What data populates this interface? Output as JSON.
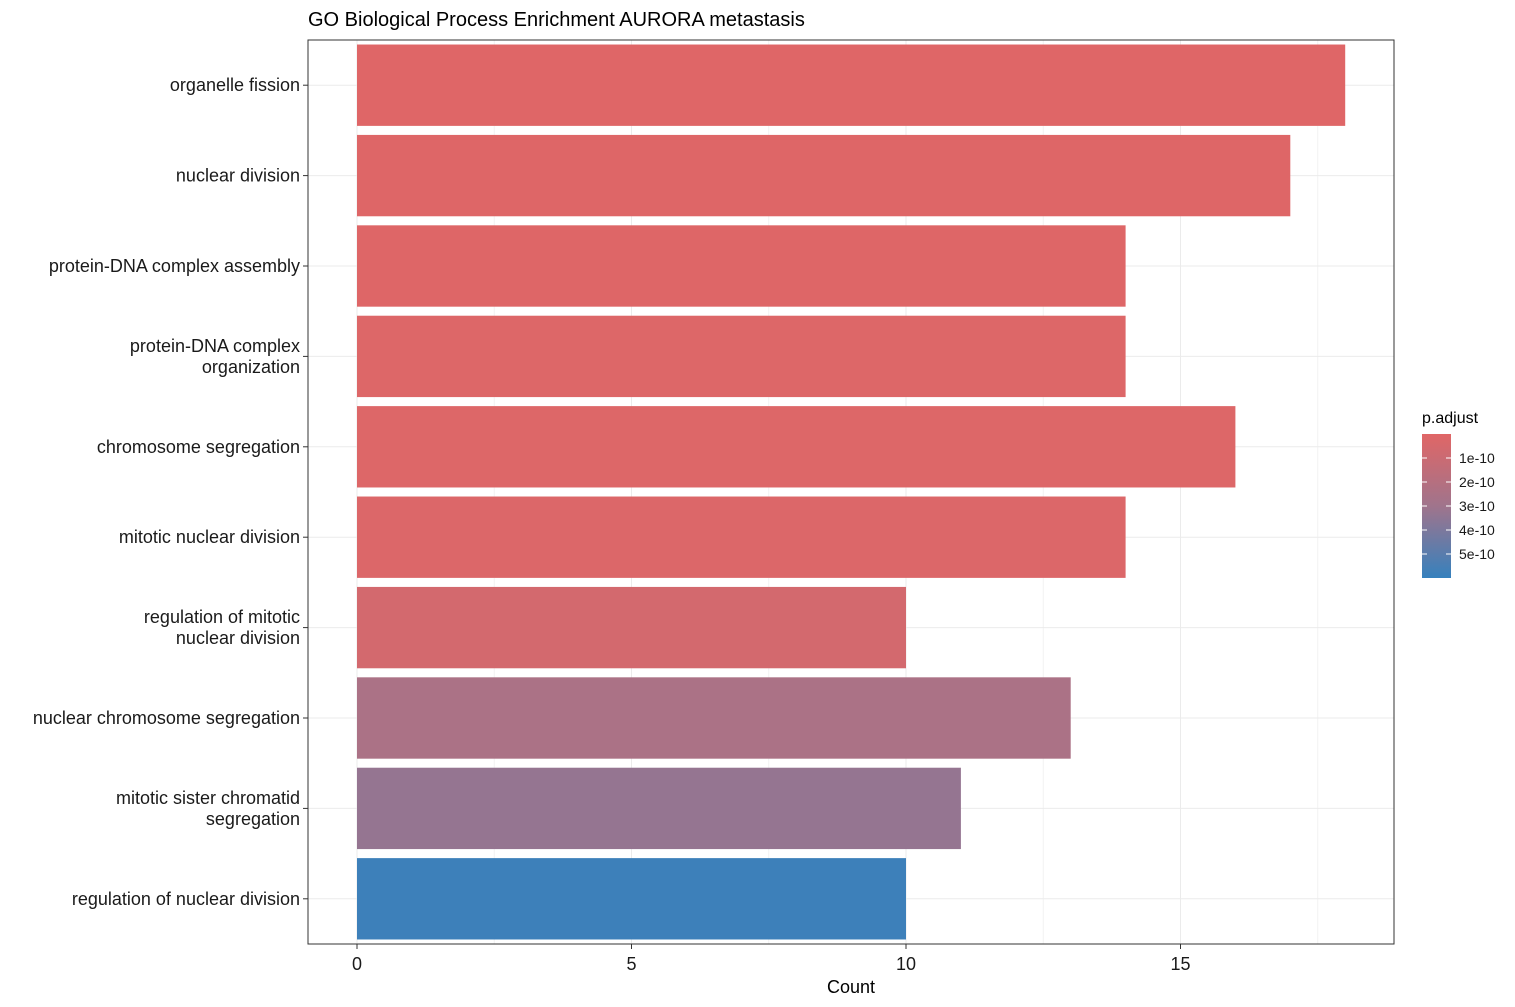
{
  "chart_data": {
    "type": "bar",
    "orientation": "horizontal",
    "title": "GO Biological Process Enrichment AURORA metastasis",
    "xlabel": "Count",
    "ylabel": "",
    "xlim": [
      0,
      18.9
    ],
    "x_ticks": [
      0,
      5,
      10,
      15
    ],
    "grid": true,
    "categories": [
      [
        "organelle fission"
      ],
      [
        "nuclear division"
      ],
      [
        "protein-DNA complex assembly"
      ],
      [
        "protein-DNA complex",
        "organization"
      ],
      [
        "chromosome segregation"
      ],
      [
        "mitotic nuclear division"
      ],
      [
        "regulation of mitotic",
        "nuclear division"
      ],
      [
        "nuclear chromosome segregation"
      ],
      [
        "mitotic sister chromatid",
        "segregation"
      ],
      [
        "regulation of nuclear division"
      ]
    ],
    "values": [
      18,
      17,
      14,
      14,
      16,
      14,
      10,
      13,
      11,
      10
    ],
    "p_adjust": [
      5e-12,
      8e-12,
      1e-11,
      1.2e-11,
      1.5e-11,
      2e-11,
      6e-11,
      2.5e-10,
      3.3e-10,
      5.8e-10
    ],
    "legend": {
      "title": "p.adjust",
      "placement": "right",
      "range": [
        0,
        6e-10
      ],
      "ticks": [
        1e-10,
        2e-10,
        3e-10,
        4e-10,
        5e-10
      ],
      "tick_labels": [
        "1e-10",
        "2e-10",
        "3e-10",
        "4e-10",
        "5e-10"
      ],
      "color_low": "#e06666",
      "color_high": "#3681bd"
    }
  }
}
